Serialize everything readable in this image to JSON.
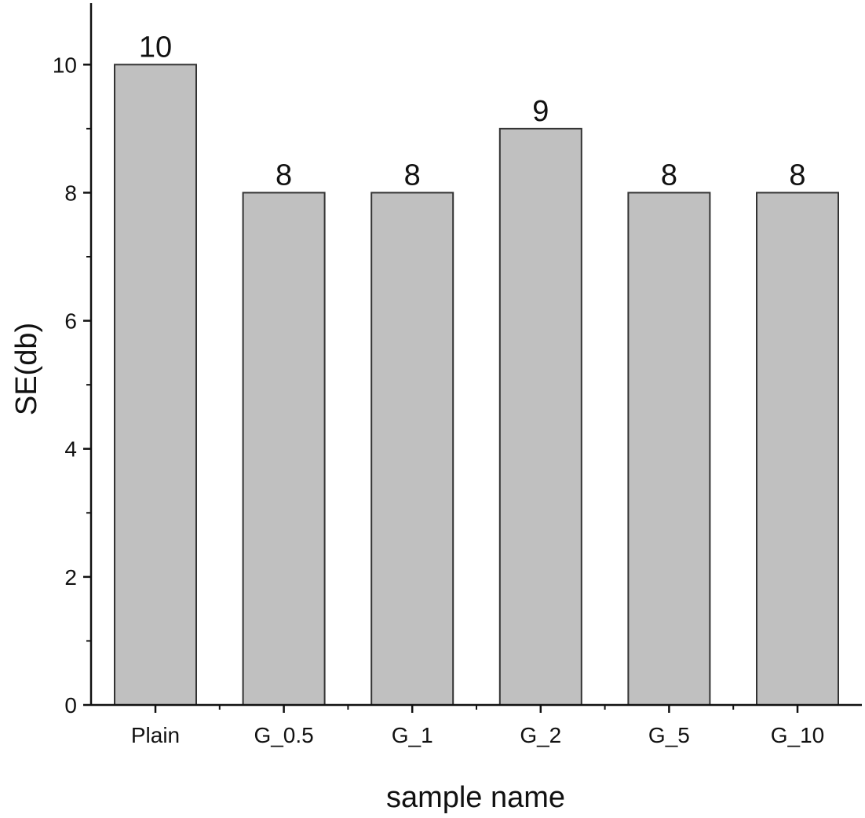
{
  "chart_data": {
    "type": "bar",
    "categories": [
      "Plain",
      "G_0.5",
      "G_1",
      "G_2",
      "G_5",
      "G_10"
    ],
    "values": [
      10,
      8,
      8,
      9,
      8,
      8
    ],
    "data_labels": [
      "10",
      "8",
      "8",
      "9",
      "8",
      "8"
    ],
    "xlabel": "sample name",
    "ylabel": "SE(db)",
    "ylim": [
      0,
      10.96
    ],
    "yticks": [
      0,
      2,
      4,
      6,
      8,
      10
    ],
    "grid": false,
    "bar_color": "#c0c0c0",
    "bar_edge_color": "#333333"
  }
}
